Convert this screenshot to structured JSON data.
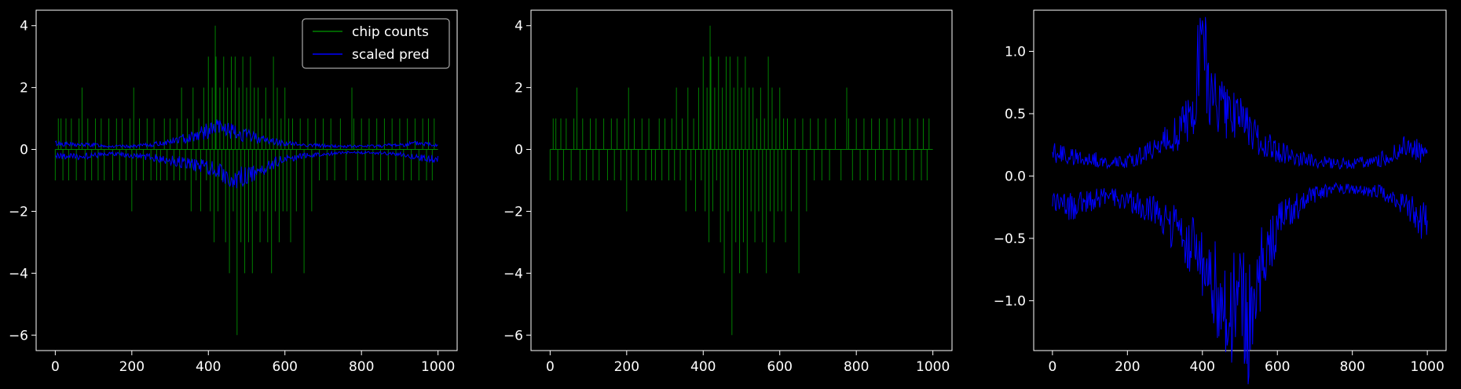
{
  "chart_data": [
    {
      "type": "line",
      "title": "",
      "xlabel": "",
      "ylabel": "",
      "xlim": [
        -50,
        1050
      ],
      "ylim": [
        -6.5,
        4.5
      ],
      "xticks": [
        0,
        200,
        400,
        600,
        800,
        1000
      ],
      "yticks": [
        -6,
        -4,
        -2,
        0,
        2,
        4
      ],
      "ytick_labels": [
        "−6",
        "−4",
        "−2",
        "0",
        "2",
        "4"
      ],
      "legend_position": "upper-right",
      "grid": false,
      "series": [
        {
          "name": "chip counts",
          "color": "#008000",
          "style": "spikes",
          "x": [
            0,
            8,
            15,
            20,
            28,
            35,
            42,
            55,
            62,
            70,
            78,
            85,
            95,
            105,
            112,
            120,
            128,
            140,
            150,
            160,
            168,
            175,
            185,
            195,
            200,
            205,
            212,
            220,
            230,
            240,
            250,
            258,
            265,
            275,
            285,
            292,
            300,
            310,
            318,
            325,
            330,
            340,
            345,
            355,
            360,
            368,
            375,
            380,
            388,
            395,
            400,
            405,
            410,
            415,
            418,
            420,
            425,
            430,
            435,
            440,
            445,
            450,
            455,
            460,
            465,
            470,
            475,
            480,
            485,
            490,
            495,
            500,
            505,
            510,
            515,
            520,
            525,
            530,
            535,
            540,
            545,
            550,
            555,
            560,
            565,
            570,
            575,
            580,
            585,
            590,
            595,
            600,
            605,
            610,
            615,
            620,
            630,
            640,
            650,
            660,
            670,
            680,
            690,
            700,
            710,
            720,
            730,
            745,
            760,
            775,
            780,
            790,
            800,
            810,
            820,
            830,
            840,
            850,
            860,
            870,
            880,
            890,
            900,
            910,
            920,
            930,
            940,
            950,
            960,
            970,
            975,
            985,
            990
          ],
          "y": [
            -1,
            1,
            1,
            -1,
            1,
            -1,
            1,
            -1,
            1,
            2,
            -1,
            1,
            -1,
            1,
            -1,
            1,
            -1,
            1,
            -1,
            1,
            -1,
            1,
            -1,
            1,
            -2,
            2,
            -1,
            1,
            -1,
            1,
            -1,
            1,
            -1,
            -1,
            1,
            -1,
            1,
            -1,
            1,
            -1,
            2,
            -1,
            1,
            -2,
            2,
            -1,
            1,
            -2,
            2,
            -1,
            3,
            -2,
            2,
            -3,
            4,
            3,
            -2,
            2,
            -1,
            3,
            -3,
            2,
            -4,
            3,
            -2,
            3,
            -6,
            2,
            -3,
            3,
            -4,
            2,
            -3,
            3,
            -4,
            2,
            -2,
            2,
            -3,
            1,
            -2,
            2,
            -3,
            1,
            -4,
            3,
            -2,
            2,
            -3,
            1,
            -2,
            2,
            -2,
            1,
            -3,
            1,
            -2,
            1,
            -4,
            1,
            -2,
            1,
            -1,
            1,
            -1,
            1,
            -1,
            1,
            -1,
            2,
            1,
            -1,
            1,
            -1,
            1,
            -1,
            1,
            -1,
            1,
            -1,
            1,
            -1,
            1,
            -1,
            1,
            -1,
            1,
            -1,
            1,
            -1,
            1,
            -1,
            1
          ]
        },
        {
          "name": "scaled pred",
          "color": "#0000ff",
          "style": "band",
          "x": [
            0,
            50,
            100,
            150,
            200,
            250,
            300,
            350,
            400,
            425,
            450,
            475,
            500,
            525,
            550,
            600,
            650,
            700,
            750,
            800,
            850,
            900,
            950,
            1000
          ],
          "upper": [
            0.2,
            0.15,
            0.15,
            0.1,
            0.1,
            0.15,
            0.25,
            0.4,
            0.6,
            0.7,
            0.65,
            0.5,
            0.45,
            0.4,
            0.3,
            0.2,
            0.15,
            0.12,
            0.1,
            0.1,
            0.12,
            0.15,
            0.2,
            0.15
          ],
          "lower": [
            -0.2,
            -0.25,
            -0.2,
            -0.15,
            -0.2,
            -0.25,
            -0.35,
            -0.45,
            -0.6,
            -0.7,
            -0.8,
            -0.9,
            -0.85,
            -0.8,
            -0.55,
            -0.3,
            -0.2,
            -0.15,
            -0.1,
            -0.1,
            -0.12,
            -0.15,
            -0.25,
            -0.35
          ]
        }
      ]
    },
    {
      "type": "line",
      "title": "",
      "xlabel": "",
      "ylabel": "",
      "xlim": [
        -50,
        1050
      ],
      "ylim": [
        -6.5,
        4.5
      ],
      "xticks": [
        0,
        200,
        400,
        600,
        800,
        1000
      ],
      "yticks": [
        -6,
        -4,
        -2,
        0,
        2,
        4
      ],
      "ytick_labels": [
        "−6",
        "−4",
        "−2",
        "0",
        "2",
        "4"
      ],
      "grid": false,
      "series": [
        {
          "color": "#008000",
          "style": "spikes",
          "x": [
            0,
            8,
            15,
            20,
            28,
            35,
            42,
            55,
            62,
            70,
            78,
            85,
            95,
            105,
            112,
            120,
            128,
            140,
            150,
            160,
            168,
            175,
            185,
            195,
            200,
            205,
            212,
            220,
            230,
            240,
            250,
            258,
            265,
            275,
            285,
            292,
            300,
            310,
            318,
            325,
            330,
            340,
            345,
            355,
            360,
            368,
            375,
            380,
            388,
            395,
            400,
            405,
            410,
            415,
            418,
            420,
            425,
            430,
            435,
            440,
            445,
            450,
            455,
            460,
            465,
            470,
            475,
            480,
            485,
            490,
            495,
            500,
            505,
            510,
            515,
            520,
            525,
            530,
            535,
            540,
            545,
            550,
            555,
            560,
            565,
            570,
            575,
            580,
            585,
            590,
            595,
            600,
            605,
            610,
            615,
            620,
            630,
            640,
            650,
            660,
            670,
            680,
            690,
            700,
            710,
            720,
            730,
            745,
            760,
            775,
            780,
            790,
            800,
            810,
            820,
            830,
            840,
            850,
            860,
            870,
            880,
            890,
            900,
            910,
            920,
            930,
            940,
            950,
            960,
            970,
            975,
            985,
            990
          ],
          "y": [
            -1,
            1,
            1,
            -1,
            1,
            -1,
            1,
            -1,
            1,
            2,
            -1,
            1,
            -1,
            1,
            -1,
            1,
            -1,
            1,
            -1,
            1,
            -1,
            1,
            -1,
            1,
            -2,
            2,
            -1,
            1,
            -1,
            1,
            -1,
            1,
            -1,
            -1,
            1,
            -1,
            1,
            -1,
            1,
            -1,
            2,
            -1,
            1,
            -2,
            2,
            -1,
            1,
            -2,
            2,
            -1,
            3,
            -2,
            2,
            -3,
            4,
            3,
            -2,
            2,
            -1,
            3,
            -3,
            2,
            -4,
            3,
            -2,
            3,
            -6,
            2,
            -3,
            3,
            -4,
            2,
            -3,
            3,
            -4,
            2,
            -2,
            2,
            -3,
            1,
            -2,
            2,
            -3,
            1,
            -4,
            3,
            -2,
            2,
            -3,
            1,
            -2,
            2,
            -2,
            1,
            -3,
            1,
            -2,
            1,
            -4,
            1,
            -2,
            1,
            -1,
            1,
            -1,
            1,
            -1,
            1,
            -1,
            2,
            1,
            -1,
            1,
            -1,
            1,
            -1,
            1,
            -1,
            1,
            -1,
            1,
            -1,
            1,
            -1,
            1,
            -1,
            1,
            -1,
            1,
            -1,
            1,
            -1,
            1
          ]
        }
      ]
    },
    {
      "type": "line",
      "title": "",
      "xlabel": "",
      "ylabel": "",
      "xlim": [
        -50,
        1050
      ],
      "ylim": [
        -1.4,
        1.33
      ],
      "xticks": [
        0,
        200,
        400,
        600,
        800,
        1000
      ],
      "yticks": [
        -1.0,
        -0.5,
        0.0,
        0.5,
        1.0
      ],
      "ytick_labels": [
        "−1.0",
        "−0.5",
        "0.0",
        "0.5",
        "1.0"
      ],
      "grid": false,
      "series": [
        {
          "color": "#0000ff",
          "style": "band",
          "x": [
            0,
            50,
            100,
            150,
            200,
            250,
            300,
            350,
            380,
            395,
            420,
            450,
            475,
            500,
            525,
            550,
            600,
            650,
            700,
            750,
            800,
            850,
            900,
            950,
            1000
          ],
          "upper": [
            0.2,
            0.15,
            0.15,
            0.1,
            0.12,
            0.18,
            0.28,
            0.4,
            0.55,
            1.2,
            0.7,
            0.6,
            0.5,
            0.45,
            0.4,
            0.3,
            0.2,
            0.15,
            0.12,
            0.1,
            0.1,
            0.12,
            0.15,
            0.25,
            0.15
          ],
          "lower": [
            -0.2,
            -0.25,
            -0.2,
            -0.15,
            -0.2,
            -0.25,
            -0.35,
            -0.5,
            -0.6,
            -0.65,
            -0.8,
            -1.0,
            -1.2,
            -0.9,
            -1.25,
            -0.8,
            -0.4,
            -0.25,
            -0.15,
            -0.1,
            -0.1,
            -0.12,
            -0.15,
            -0.25,
            -0.4
          ]
        }
      ]
    }
  ]
}
